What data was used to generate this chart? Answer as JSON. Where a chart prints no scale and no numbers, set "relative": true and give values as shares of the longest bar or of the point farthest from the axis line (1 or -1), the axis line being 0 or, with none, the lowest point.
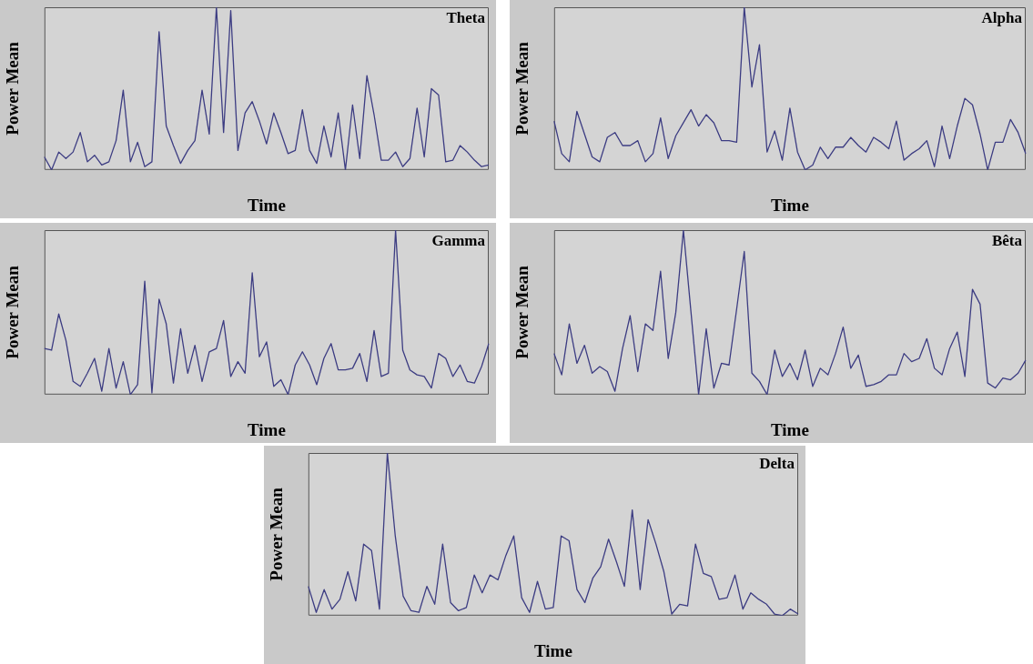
{
  "chart_data": [
    {
      "type": "line",
      "title": "Theta",
      "xlabel": "Time",
      "ylabel": "Power Mean",
      "relative": true,
      "marker": "none",
      "line_style": "solid",
      "categories": [
        null,
        null,
        null,
        null,
        null,
        null,
        null,
        null,
        null,
        null,
        null,
        null,
        null,
        null,
        null,
        null,
        null,
        null,
        null,
        null,
        null,
        null,
        null,
        null,
        null,
        null,
        null,
        null,
        null,
        null,
        null,
        null,
        null,
        null,
        null,
        null,
        null,
        null,
        null,
        null,
        null,
        null,
        null,
        null,
        null,
        null,
        null,
        null,
        null,
        null,
        null,
        null,
        null,
        null,
        null,
        null,
        null,
        null,
        null,
        null,
        null,
        null,
        null
      ],
      "series": [
        {
          "color": "#3c3c82",
          "values": [
            0.08,
            0,
            0.11,
            0.07,
            0.11,
            0.23,
            0.05,
            0.09,
            0.03,
            0.05,
            0.18,
            0.49,
            0.05,
            0.17,
            0.02,
            0.05,
            0.85,
            0.27,
            0.15,
            0.04,
            0.12,
            0.18,
            0.49,
            0.22,
            1,
            0.23,
            0.98,
            0.12,
            0.35,
            0.42,
            0.3,
            0.16,
            0.35,
            0.23,
            0.1,
            0.12,
            0.37,
            0.12,
            0.04,
            0.27,
            0.08,
            0.35,
            0,
            0.4,
            0.07,
            0.58,
            0.34,
            0.06,
            0.06,
            0.11,
            0.02,
            0.07,
            0.38,
            0.08,
            0.5,
            0.46,
            0.05,
            0.06,
            0.15,
            0.11,
            0.06,
            0.02,
            0.03
          ]
        }
      ]
    },
    {
      "type": "line",
      "title": "Alpha",
      "xlabel": "Time",
      "ylabel": "Power Mean",
      "relative": true,
      "marker": "none",
      "line_style": "solid",
      "categories": [
        null,
        null,
        null,
        null,
        null,
        null,
        null,
        null,
        null,
        null,
        null,
        null,
        null,
        null,
        null,
        null,
        null,
        null,
        null,
        null,
        null,
        null,
        null,
        null,
        null,
        null,
        null,
        null,
        null,
        null,
        null,
        null,
        null,
        null,
        null,
        null,
        null,
        null,
        null,
        null,
        null,
        null,
        null,
        null,
        null,
        null,
        null,
        null,
        null,
        null,
        null,
        null,
        null,
        null,
        null,
        null,
        null,
        null,
        null,
        null,
        null,
        null,
        null
      ],
      "series": [
        {
          "color": "#3c3c82",
          "values": [
            0.3,
            0.1,
            0.05,
            0.36,
            0.22,
            0.08,
            0.05,
            0.2,
            0.23,
            0.15,
            0.15,
            0.18,
            0.05,
            0.1,
            0.32,
            0.07,
            0.21,
            0.29,
            0.37,
            0.27,
            0.34,
            0.29,
            0.18,
            0.18,
            0.17,
            1,
            0.51,
            0.77,
            0.11,
            0.24,
            0.06,
            0.38,
            0.11,
            0,
            0.03,
            0.14,
            0.07,
            0.14,
            0.14,
            0.2,
            0.15,
            0.11,
            0.2,
            0.17,
            0.13,
            0.3,
            0.06,
            0.1,
            0.13,
            0.18,
            0.02,
            0.27,
            0.07,
            0.27,
            0.44,
            0.4,
            0.22,
            0,
            0.17,
            0.17,
            0.31,
            0.23,
            0.1
          ]
        }
      ]
    },
    {
      "type": "line",
      "title": "Gamma",
      "xlabel": "Time",
      "ylabel": "Power Mean",
      "relative": true,
      "marker": "none",
      "line_style": "solid",
      "categories": [
        null,
        null,
        null,
        null,
        null,
        null,
        null,
        null,
        null,
        null,
        null,
        null,
        null,
        null,
        null,
        null,
        null,
        null,
        null,
        null,
        null,
        null,
        null,
        null,
        null,
        null,
        null,
        null,
        null,
        null,
        null,
        null,
        null,
        null,
        null,
        null,
        null,
        null,
        null,
        null,
        null,
        null,
        null,
        null,
        null,
        null,
        null,
        null,
        null,
        null,
        null,
        null,
        null,
        null,
        null,
        null,
        null,
        null,
        null,
        null,
        null,
        null,
        null
      ],
      "series": [
        {
          "color": "#3c3c82",
          "values": [
            0.28,
            0.27,
            0.49,
            0.33,
            0.08,
            0.05,
            0.13,
            0.22,
            0.02,
            0.28,
            0.04,
            0.2,
            0,
            0.06,
            0.69,
            0.01,
            0.58,
            0.43,
            0.07,
            0.4,
            0.13,
            0.3,
            0.08,
            0.26,
            0.28,
            0.45,
            0.11,
            0.2,
            0.13,
            0.74,
            0.23,
            0.32,
            0.05,
            0.09,
            0,
            0.18,
            0.26,
            0.18,
            0.06,
            0.22,
            0.31,
            0.15,
            0.15,
            0.16,
            0.25,
            0.08,
            0.39,
            0.11,
            0.13,
            1,
            0.27,
            0.15,
            0.12,
            0.11,
            0.04,
            0.25,
            0.22,
            0.11,
            0.18,
            0.08,
            0.07,
            0.17,
            0.31
          ]
        }
      ]
    },
    {
      "type": "line",
      "title": "Bêta",
      "xlabel": "Time",
      "ylabel": "Power Mean",
      "relative": true,
      "marker": "none",
      "line_style": "solid",
      "categories": [
        null,
        null,
        null,
        null,
        null,
        null,
        null,
        null,
        null,
        null,
        null,
        null,
        null,
        null,
        null,
        null,
        null,
        null,
        null,
        null,
        null,
        null,
        null,
        null,
        null,
        null,
        null,
        null,
        null,
        null,
        null,
        null,
        null,
        null,
        null,
        null,
        null,
        null,
        null,
        null,
        null,
        null,
        null,
        null,
        null,
        null,
        null,
        null,
        null,
        null,
        null,
        null,
        null,
        null,
        null,
        null,
        null,
        null,
        null,
        null,
        null,
        null,
        null
      ],
      "series": [
        {
          "color": "#3c3c82",
          "values": [
            0.25,
            0.12,
            0.43,
            0.19,
            0.3,
            0.13,
            0.17,
            0.14,
            0.02,
            0.28,
            0.48,
            0.14,
            0.43,
            0.39,
            0.75,
            0.22,
            0.5,
            1,
            0.5,
            0,
            0.4,
            0.04,
            0.19,
            0.18,
            0.52,
            0.87,
            0.13,
            0.08,
            0,
            0.27,
            0.11,
            0.19,
            0.09,
            0.27,
            0.05,
            0.16,
            0.12,
            0.25,
            0.41,
            0.16,
            0.24,
            0.05,
            0.06,
            0.08,
            0.12,
            0.12,
            0.25,
            0.2,
            0.22,
            0.34,
            0.16,
            0.12,
            0.28,
            0.38,
            0.11,
            0.64,
            0.55,
            0.07,
            0.04,
            0.1,
            0.09,
            0.13,
            0.21
          ]
        }
      ]
    },
    {
      "type": "line",
      "title": "Delta",
      "xlabel": "Time",
      "ylabel": "Power Mean",
      "relative": true,
      "marker": "none",
      "line_style": "solid",
      "categories": [
        null,
        null,
        null,
        null,
        null,
        null,
        null,
        null,
        null,
        null,
        null,
        null,
        null,
        null,
        null,
        null,
        null,
        null,
        null,
        null,
        null,
        null,
        null,
        null,
        null,
        null,
        null,
        null,
        null,
        null,
        null,
        null,
        null,
        null,
        null,
        null,
        null,
        null,
        null,
        null,
        null,
        null,
        null,
        null,
        null,
        null,
        null,
        null,
        null,
        null,
        null,
        null,
        null,
        null,
        null,
        null,
        null,
        null,
        null,
        null,
        null,
        null,
        null
      ],
      "series": [
        {
          "color": "#3c3c82",
          "values": [
            0.18,
            0.02,
            0.16,
            0.04,
            0.1,
            0.27,
            0.09,
            0.44,
            0.4,
            0.04,
            1,
            0.49,
            0.12,
            0.03,
            0.02,
            0.18,
            0.07,
            0.44,
            0.08,
            0.03,
            0.05,
            0.25,
            0.14,
            0.25,
            0.22,
            0.37,
            0.49,
            0.11,
            0.02,
            0.21,
            0.04,
            0.05,
            0.49,
            0.46,
            0.16,
            0.08,
            0.23,
            0.3,
            0.47,
            0.33,
            0.18,
            0.65,
            0.16,
            0.59,
            0.44,
            0.27,
            0.01,
            0.07,
            0.06,
            0.44,
            0.26,
            0.24,
            0.1,
            0.11,
            0.25,
            0.04,
            0.14,
            0.1,
            0.07,
            0.01,
            0,
            0.04,
            0.01
          ]
        }
      ]
    }
  ]
}
